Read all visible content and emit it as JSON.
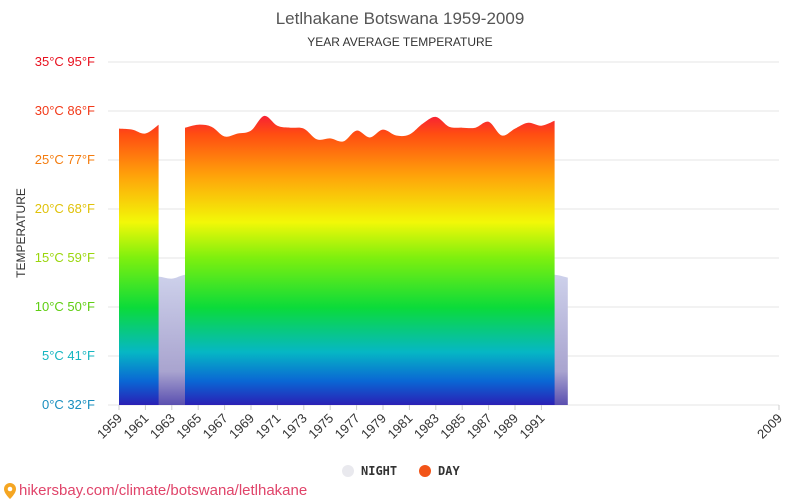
{
  "chart_data": {
    "type": "area",
    "title": "Letlhakane Botswana 1959-2009",
    "subtitle": "YEAR AVERAGE TEMPERATURE",
    "ylabel": "TEMPERATURE",
    "xlabel": "",
    "ylim": [
      0,
      35
    ],
    "xlim": [
      1959,
      2009
    ],
    "grid": true,
    "legend_position": "bottom-center",
    "y_tick_labels": [
      {
        "value": 0,
        "label": "0°C 32°F",
        "color": "#1a8fbf"
      },
      {
        "value": 5,
        "label": "5°C 41°F",
        "color": "#15b5c0"
      },
      {
        "value": 10,
        "label": "10°C 50°F",
        "color": "#5fce13"
      },
      {
        "value": 15,
        "label": "15°C 59°F",
        "color": "#9ad60c"
      },
      {
        "value": 20,
        "label": "20°C 68°F",
        "color": "#e0c20a"
      },
      {
        "value": 25,
        "label": "25°C 77°F",
        "color": "#f47c0e"
      },
      {
        "value": 30,
        "label": "30°C 86°F",
        "color": "#f23a1a"
      },
      {
        "value": 35,
        "label": "35°C 95°F",
        "color": "#e8101e"
      }
    ],
    "x_tick_labels": [
      "1959",
      "1961",
      "1963",
      "1965",
      "1967",
      "1969",
      "1971",
      "1973",
      "1975",
      "1977",
      "1979",
      "1981",
      "1983",
      "1985",
      "1987",
      "1989",
      "1991",
      "2009"
    ],
    "x_tick_values": [
      1959,
      1961,
      1963,
      1965,
      1967,
      1969,
      1971,
      1973,
      1975,
      1977,
      1979,
      1981,
      1983,
      1985,
      1987,
      1989,
      1991,
      2009
    ],
    "series": [
      {
        "name": "NIGHT",
        "color": "#c8cde8",
        "x": [
          1959,
          1960,
          1961,
          1962,
          1963,
          1964,
          1965,
          1966,
          1967,
          1968,
          1969,
          1970,
          1971,
          1972,
          1973,
          1974,
          1975,
          1976,
          1977,
          1978,
          1979,
          1980,
          1981,
          1982,
          1983,
          1984,
          1985,
          1986,
          1987,
          1988,
          1989,
          1990,
          1991,
          1992,
          1993
        ],
        "values": [
          13.7,
          14.1,
          13.1,
          13.1,
          12.9,
          13.3,
          13.3,
          13.5,
          12.3,
          13.1,
          13.4,
          13.7,
          13.2,
          13.0,
          13.9,
          12.6,
          12.6,
          12.1,
          12.7,
          12.4,
          13.3,
          12.5,
          12.8,
          13.7,
          15.1,
          14.1,
          14.3,
          14.5,
          14.9,
          13.5,
          13.8,
          13.4,
          13.2,
          13.3,
          13.0
        ]
      },
      {
        "name": "DAY",
        "color": "#f25418",
        "x": [
          1959,
          1960,
          1961,
          1962,
          1964,
          1965,
          1966,
          1967,
          1968,
          1969,
          1970,
          1971,
          1972,
          1973,
          1974,
          1975,
          1976,
          1977,
          1978,
          1979,
          1980,
          1981,
          1982,
          1983,
          1984,
          1985,
          1986,
          1987,
          1988,
          1989,
          1990,
          1991,
          1992
        ],
        "values": [
          28.2,
          28.1,
          27.7,
          28.6,
          28.3,
          28.6,
          28.4,
          27.4,
          27.7,
          28.0,
          29.5,
          28.5,
          28.3,
          28.2,
          27.1,
          27.2,
          26.9,
          28.0,
          27.3,
          28.1,
          27.5,
          27.6,
          28.7,
          29.4,
          28.4,
          28.3,
          28.3,
          28.9,
          27.5,
          28.2,
          28.8,
          28.5,
          29.0
        ]
      }
    ]
  },
  "footer": {
    "text": "hikersbay.com/climate/botswana/letlhakane",
    "icon": "map-pin-icon"
  }
}
